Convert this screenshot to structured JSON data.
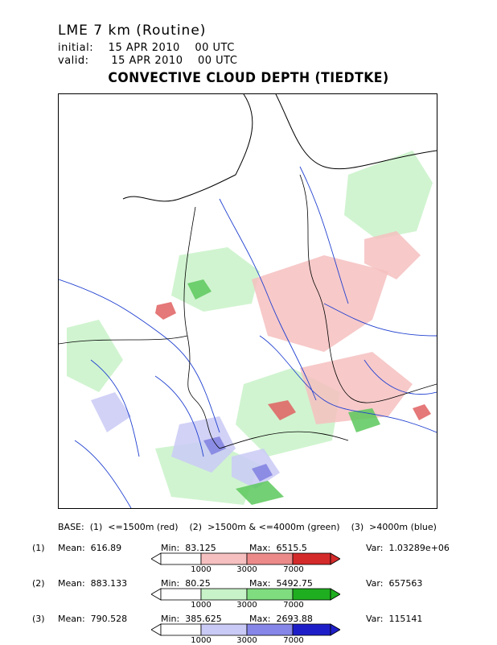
{
  "header": {
    "model": "LME 7 km (Routine)",
    "initial_label": "initial:",
    "initial_value": "15 APR 2010    00 UTC",
    "valid_label": "valid:",
    "valid_value": "15 APR 2010    00 UTC",
    "title": "CONVECTIVE CLOUD DEPTH (TIEDTKE)"
  },
  "legend": {
    "base_text": "BASE:  (1)  <=1500m (red)    (2)  >1500m & <=4000m (green)    (3)  >4000m (blue)",
    "ticks": [
      "1000",
      "3000",
      "7000"
    ],
    "rows": [
      {
        "index": "(1)",
        "mean": "Mean:  616.89",
        "min": "Min:  83.125",
        "max": "Max:  6515.5",
        "var": "Var:  1.03289e+06",
        "colors": [
          "#ffffff",
          "#f6c0c0",
          "#ec8a8a",
          "#d42a2a"
        ]
      },
      {
        "index": "(2)",
        "mean": "Mean:  883.133",
        "min": "Min:  80.25",
        "max": "Max:  5492.75",
        "var": "Var:  657563",
        "colors": [
          "#ffffff",
          "#c8f2c8",
          "#7fdc7f",
          "#1fae1f"
        ]
      },
      {
        "index": "(3)",
        "mean": "Mean:  790.528",
        "min": "Min:  385.625",
        "max": "Max:  2693.88",
        "var": "Var:  115141",
        "colors": [
          "#ffffff",
          "#cacaf6",
          "#8686e8",
          "#1e1ec8"
        ]
      }
    ]
  },
  "map_colors": {
    "light_green": "#c8f2c8",
    "green": "#5cc85c",
    "light_red": "#f6c0c0",
    "red": "#e06060",
    "light_blue": "#cacaf6",
    "blue": "#8080e0",
    "river": "#2040d0",
    "coast": "#000000",
    "border": "#000000"
  }
}
